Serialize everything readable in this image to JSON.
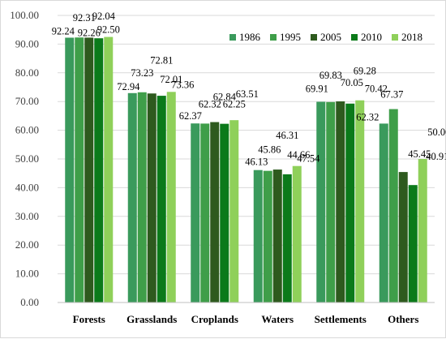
{
  "chart_data": {
    "type": "bar",
    "categories": [
      "Forests",
      "Grasslands",
      "Croplands",
      "Waters",
      "Settlements",
      "Others"
    ],
    "series": [
      {
        "name": "1986",
        "color": "#3a9a5c",
        "values": [
          92.24,
          72.94,
          62.37,
          46.13,
          69.91,
          62.32
        ]
      },
      {
        "name": "1995",
        "color": "#3f9e49",
        "values": [
          92.31,
          73.23,
          62.32,
          45.86,
          69.83,
          67.37
        ]
      },
      {
        "name": "2005",
        "color": "#2e5a1e",
        "values": [
          92.26,
          72.81,
          62.84,
          46.31,
          70.05,
          45.45
        ]
      },
      {
        "name": "2010",
        "color": "#0b7a1a",
        "values": [
          92.04,
          72.01,
          62.25,
          44.66,
          69.28,
          40.91
        ]
      },
      {
        "name": "2018",
        "color": "#8fd05a",
        "values": [
          92.5,
          73.36,
          63.51,
          47.54,
          70.42,
          50.0
        ]
      }
    ],
    "y_ticks": [
      "0.00",
      "10.00",
      "20.00",
      "30.00",
      "40.00",
      "50.00",
      "60.00",
      "70.00",
      "80.00",
      "90.00",
      "100.00"
    ],
    "ylim": [
      0,
      100
    ],
    "grid": true,
    "legend_position": "top-right",
    "title": "",
    "xlabel": "",
    "ylabel": ""
  }
}
